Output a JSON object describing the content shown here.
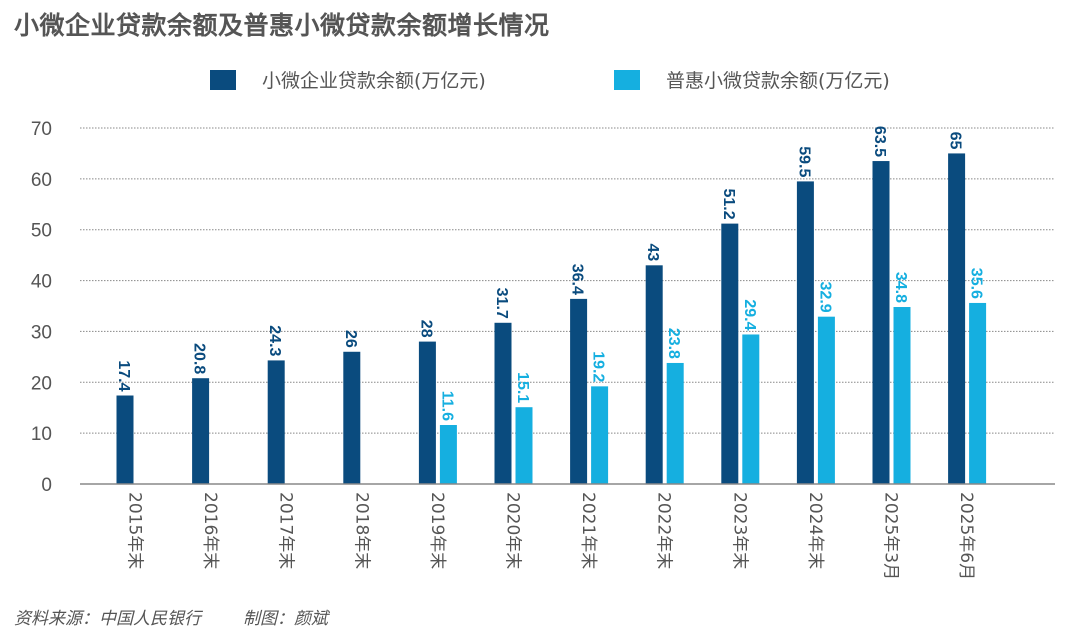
{
  "title": "小微企业贷款余额及普惠小微贷款余额增长情况",
  "footer": {
    "source": "资料来源：中国人民银行",
    "author": "制图：颜斌"
  },
  "colors": {
    "series1": "#0a4b7e",
    "series2": "#15afe0",
    "grid": "#888888",
    "axis": "#888888",
    "text": "#555555"
  },
  "chart_data": {
    "type": "bar",
    "title": "小微企业贷款余额及普惠小微贷款余额增长情况",
    "xlabel": "",
    "ylabel": "",
    "ylim": [
      0,
      70
    ],
    "yticks": [
      0,
      10,
      20,
      30,
      40,
      50,
      60,
      70
    ],
    "grid": true,
    "legend_position": "top",
    "categories": [
      "2015年末",
      "2016年末",
      "2017年末",
      "2018年末",
      "2019年末",
      "2020年末",
      "2021年末",
      "2022年末",
      "2023年末",
      "2024年末",
      "2025年3月",
      "2025年6月"
    ],
    "series": [
      {
        "name": "小微企业贷款余额(万亿元)",
        "color": "#0a4b7e",
        "values": [
          17.4,
          20.8,
          24.3,
          26,
          28,
          31.7,
          36.4,
          43,
          51.2,
          59.5,
          63.5,
          65
        ]
      },
      {
        "name": "普惠小微贷款余额(万亿元)",
        "color": "#15afe0",
        "values": [
          null,
          null,
          null,
          null,
          11.6,
          15.1,
          19.2,
          23.8,
          29.4,
          32.9,
          34.8,
          35.6
        ]
      }
    ]
  }
}
